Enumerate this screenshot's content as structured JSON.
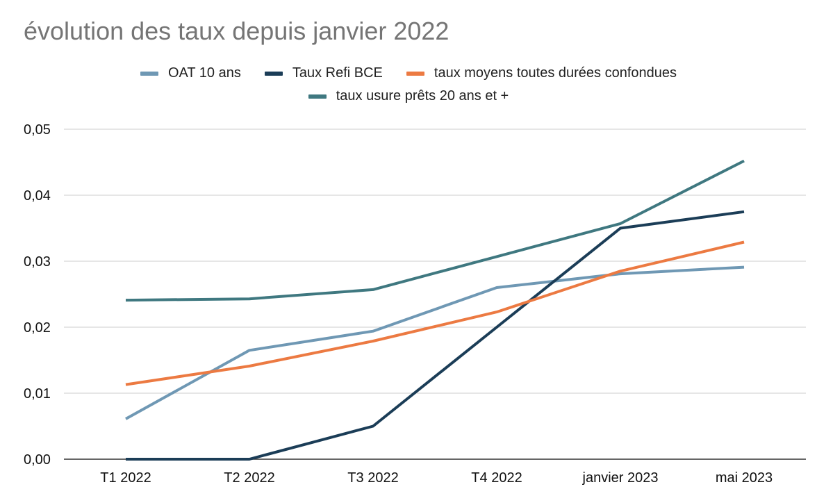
{
  "chart_data": {
    "type": "line",
    "title": "évolution des taux depuis janvier 2022",
    "xlabel": "",
    "ylabel": "",
    "categories": [
      "T1 2022",
      "T2 2022",
      "T3 2022",
      "T4 2022",
      "janvier 2023",
      "mai 2023"
    ],
    "ylim": [
      0,
      0.05
    ],
    "yticks": [
      0,
      0.01,
      0.02,
      0.03,
      0.04,
      0.05
    ],
    "ytick_labels": [
      "0,00",
      "0,01",
      "0,02",
      "0,03",
      "0,04",
      "0,05"
    ],
    "grid": true,
    "legend_position": "top-center",
    "series": [
      {
        "name": "OAT 10 ans",
        "color": "#6f98b4",
        "values": [
          0.0061,
          0.0165,
          0.0194,
          0.026,
          0.0281,
          0.0291
        ]
      },
      {
        "name": "Taux Refi BCE",
        "color": "#1b3d57",
        "values": [
          0.0,
          0.0,
          0.005,
          0.02,
          0.035,
          0.0375
        ]
      },
      {
        "name": "taux moyens toutes durées confondues",
        "color": "#ec7a42",
        "values": [
          0.0113,
          0.0141,
          0.0179,
          0.0223,
          0.0285,
          0.0329
        ]
      },
      {
        "name": "taux usure prêts 20 ans et +",
        "color": "#3f7880",
        "values": [
          0.0241,
          0.0243,
          0.0257,
          0.0307,
          0.0357,
          0.0452
        ]
      }
    ]
  }
}
